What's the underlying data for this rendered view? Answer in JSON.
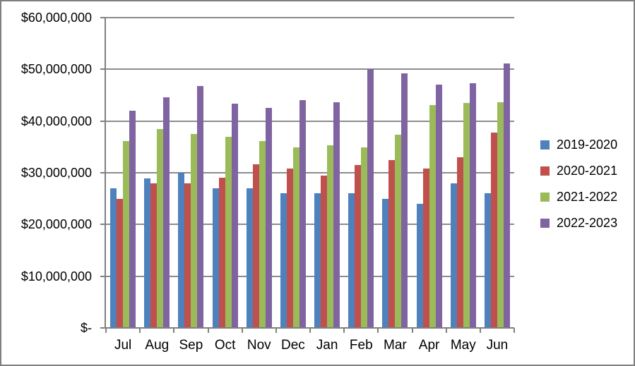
{
  "chart_data": {
    "type": "bar",
    "title": "",
    "xlabel": "",
    "ylabel": "",
    "categories": [
      "Jul",
      "Aug",
      "Sep",
      "Oct",
      "Nov",
      "Dec",
      "Jan",
      "Feb",
      "Mar",
      "Apr",
      "May",
      "Jun"
    ],
    "series": [
      {
        "name": "2019-2020",
        "color": "#4F81BD",
        "values": [
          27000000,
          28900000,
          30000000,
          27000000,
          27000000,
          26000000,
          26000000,
          26000000,
          25000000,
          24000000,
          28000000,
          26000000
        ]
      },
      {
        "name": "2020-2021",
        "color": "#C0504D",
        "values": [
          25000000,
          28000000,
          28000000,
          29000000,
          31700000,
          30800000,
          29500000,
          31500000,
          32500000,
          30800000,
          33000000,
          37800000
        ]
      },
      {
        "name": "2021-2022",
        "color": "#9BBB59",
        "values": [
          36200000,
          38400000,
          37500000,
          37000000,
          36100000,
          34900000,
          35300000,
          34900000,
          37400000,
          43100000,
          43500000,
          43700000
        ]
      },
      {
        "name": "2022-2023",
        "color": "#8064A2",
        "values": [
          42000000,
          44600000,
          46800000,
          43400000,
          42500000,
          44000000,
          43600000,
          50000000,
          49300000,
          47000000,
          47300000,
          51200000
        ]
      }
    ],
    "y_axis": {
      "min": 0,
      "max": 60000000,
      "tick_step": 10000000,
      "tick_labels": [
        "$-",
        "$10,000,000",
        "$20,000,000",
        "$30,000,000",
        "$40,000,000",
        "$50,000,000",
        "$60,000,000"
      ]
    },
    "legend": {
      "position": "right",
      "entries": [
        "2019-2020",
        "2020-2021",
        "2021-2022",
        "2022-2023"
      ]
    },
    "grid": true,
    "style": {
      "background": "#FFFFFF",
      "frame_color": "#7F7F7F",
      "gridline_color": "#8C8C8C",
      "axis_color": "#7F7F7F",
      "text_color": "#000000"
    }
  }
}
